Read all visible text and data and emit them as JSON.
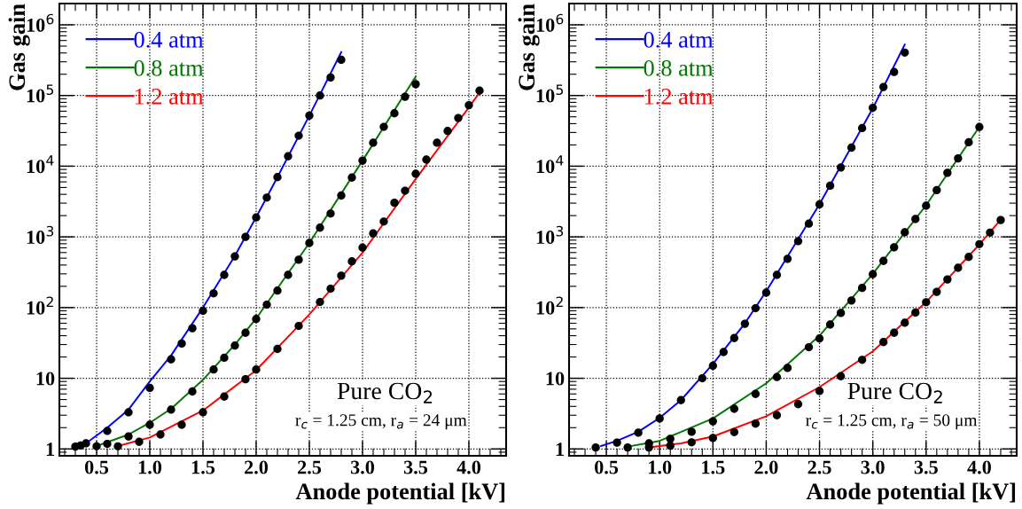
{
  "chart_data": [
    {
      "type": "line",
      "xlabel": "Anode potential [kV]",
      "ylabel": "Gas gain",
      "log": "y",
      "grid": true,
      "legend": "top left",
      "xlim": [
        0.15,
        4.35
      ],
      "xticks": [
        0.5,
        {
          "value": 1,
          "label": "1.0"
        },
        1.5,
        {
          "value": 2,
          "label": "2.0"
        },
        2.5,
        {
          "value": 3,
          "label": "3.0"
        },
        3.5,
        {
          "value": 4,
          "label": "4.0"
        }
      ],
      "ylim": [
        0.8,
        2000000
      ],
      "yticks": [
        1,
        10,
        {
          "value": 100,
          "label": "10$^{2}$"
        },
        {
          "value": 1000,
          "label": "10$^{3}$"
        },
        {
          "value": 10000,
          "label": "10$^{4}$"
        },
        {
          "value": 100000,
          "label": "10$^{5}$"
        },
        {
          "value": 1000000,
          "label": "10$^{6}$"
        }
      ],
      "annotations": [
        "Pure CO$_{2}$",
        "r$_{c}$ = 1.25 cm, r$_{a}$ = 24 μm"
      ],
      "series": [
        {
          "name": "0.4 atm",
          "color": "#0000ff",
          "x": [
            0.4,
            0.6,
            0.8,
            1.0,
            1.2,
            1.5,
            1.8,
            2.0,
            2.2,
            2.5,
            2.8
          ],
          "values": [
            1.2,
            2.0,
            3.6,
            9.0,
            21,
            100,
            540,
            1900,
            7000,
            52000,
            410000
          ]
        },
        {
          "name": "0.8 atm",
          "color": "#007700",
          "x": [
            0.5,
            0.8,
            1.0,
            1.2,
            1.5,
            1.8,
            2.0,
            2.5,
            3.0,
            3.5
          ],
          "values": [
            1.1,
            1.6,
            2.35,
            3.7,
            9.5,
            30,
            70,
            820,
            12000,
            186000
          ]
        },
        {
          "name": "1.2 atm",
          "color": "#ff0000",
          "x": [
            0.7,
            1.0,
            1.5,
            2.0,
            2.5,
            3.0,
            3.5,
            4.0,
            4.1
          ],
          "values": [
            1.1,
            1.45,
            3.5,
            13,
            80,
            600,
            6600,
            68000,
            110000
          ]
        },
        {
          "type": "scatter",
          "marker": "circle",
          "color": "#000000",
          "x": [
            0.3,
            0.35,
            0.4,
            0.6,
            0.8,
            1.0,
            1.2,
            1.3,
            1.4,
            1.5,
            1.6,
            1.7,
            1.8,
            1.9,
            2.0,
            2.1,
            2.2,
            2.3,
            2.4,
            2.5,
            2.6,
            2.7,
            2.8
          ],
          "values": [
            1.08,
            1.12,
            1.2,
            1.8,
            3.3,
            7.3,
            18.5,
            31,
            51,
            90,
            159,
            290,
            530,
            1000,
            1880,
            3600,
            7000,
            13800,
            27000,
            52000,
            100000,
            180000,
            320000
          ]
        },
        {
          "type": "scatter",
          "marker": "circle",
          "color": "#000000",
          "x": [
            0.5,
            0.6,
            0.8,
            1.0,
            1.2,
            1.4,
            1.6,
            1.7,
            1.8,
            1.9,
            2.0,
            2.1,
            2.2,
            2.3,
            2.4,
            2.5,
            2.6,
            2.7,
            2.8,
            2.9,
            3.0,
            3.1,
            3.2,
            3.3,
            3.4,
            3.5
          ],
          "values": [
            1.09,
            1.18,
            1.5,
            2.2,
            3.6,
            6.5,
            13.3,
            19.5,
            29,
            44,
            69,
            110,
            174,
            290,
            475,
            820,
            1350,
            2140,
            3850,
            6900,
            12000,
            21500,
            36000,
            56000,
            96000,
            145000
          ]
        },
        {
          "type": "scatter",
          "marker": "circle",
          "color": "#000000",
          "x": [
            0.7,
            0.9,
            1.1,
            1.3,
            1.5,
            1.7,
            1.9,
            2.0,
            2.2,
            2.4,
            2.6,
            2.7,
            2.8,
            2.9,
            3.0,
            3.1,
            3.2,
            3.3,
            3.4,
            3.5,
            3.6,
            3.7,
            3.8,
            3.9,
            4.0,
            4.1
          ],
          "values": [
            1.09,
            1.26,
            1.6,
            2.2,
            3.3,
            5.5,
            9.7,
            13.3,
            26,
            55,
            120,
            185,
            283,
            450,
            705,
            1120,
            1650,
            3040,
            4500,
            7800,
            12400,
            21500,
            31500,
            48000,
            73000,
            117000
          ]
        }
      ]
    },
    {
      "type": "line",
      "xlabel": "Anode potential [kV]",
      "ylabel": "Gas gain",
      "log": "y",
      "grid": true,
      "legend": "top left",
      "xlim": [
        0.15,
        4.35
      ],
      "xticks": [
        0.5,
        {
          "value": 1,
          "label": "1.0"
        },
        1.5,
        {
          "value": 2,
          "label": "2.0"
        },
        2.5,
        {
          "value": 3,
          "label": "3.0"
        },
        3.5,
        {
          "value": 4,
          "label": "4.0"
        }
      ],
      "ylim": [
        0.8,
        2000000
      ],
      "yticks": [
        1,
        10,
        {
          "value": 100,
          "label": "10$^{2}$"
        },
        {
          "value": 1000,
          "label": "10$^{3}$"
        },
        {
          "value": 10000,
          "label": "10$^{4}$"
        },
        {
          "value": 100000,
          "label": "10$^{5}$"
        },
        {
          "value": 1000000,
          "label": "10$^{6}$"
        }
      ],
      "annotations": [
        "Pure CO$_{2}$",
        "r$_{c}$ = 1.25 cm, r$_{a}$ = 50 μm"
      ],
      "series": [
        {
          "name": "0.4 atm",
          "color": "#0000ff",
          "x": [
            0.45,
            0.6,
            0.8,
            1.0,
            1.2,
            1.5,
            1.8,
            2.0,
            2.5,
            3.0,
            3.3
          ],
          "values": [
            1.1,
            1.3,
            1.75,
            2.75,
            4.9,
            16,
            60,
            170,
            2900,
            66000,
            525000
          ]
        },
        {
          "name": "0.8 atm",
          "color": "#007700",
          "x": [
            0.7,
            1.0,
            1.5,
            2.0,
            2.5,
            3.0,
            3.5,
            4.0
          ],
          "values": [
            1.08,
            1.3,
            2.7,
            8.5,
            40,
            300,
            2800,
            36000
          ]
        },
        {
          "name": "1.2 atm",
          "color": "#ff0000",
          "x": [
            0.9,
            1.2,
            1.5,
            2.0,
            2.5,
            3.0,
            3.5,
            4.0,
            4.2
          ],
          "values": [
            1.05,
            1.2,
            1.5,
            2.9,
            7.5,
            24,
            120,
            780,
            1750
          ]
        },
        {
          "type": "scatter",
          "marker": "circle",
          "color": "#000000",
          "x": [
            0.4,
            0.6,
            0.8,
            1.0,
            1.2,
            1.4,
            1.5,
            1.6,
            1.7,
            1.8,
            1.9,
            2.0,
            2.1,
            2.2,
            2.3,
            2.4,
            2.5,
            2.6,
            2.7,
            2.8,
            2.9,
            3.0,
            3.1,
            3.2,
            3.3
          ],
          "values": [
            1.05,
            1.23,
            1.7,
            2.7,
            4.9,
            10,
            15,
            23.5,
            37,
            59,
            98,
            163,
            290,
            490,
            870,
            1540,
            2880,
            5300,
            9600,
            18300,
            34600,
            67000,
            132000,
            215000,
            405000
          ]
        },
        {
          "type": "scatter",
          "marker": "circle",
          "color": "#000000",
          "x": [
            0.7,
            0.9,
            1.1,
            1.3,
            1.5,
            1.7,
            1.9,
            2.1,
            2.2,
            2.4,
            2.5,
            2.6,
            2.7,
            2.8,
            2.9,
            3.0,
            3.1,
            3.2,
            3.3,
            3.4,
            3.5,
            3.6,
            3.7,
            3.8,
            3.9,
            4.0
          ],
          "values": [
            1.05,
            1.2,
            1.39,
            1.75,
            2.46,
            3.7,
            6.0,
            10.4,
            14,
            27.5,
            36.5,
            57.5,
            84,
            126,
            190,
            296,
            457,
            713,
            1160,
            1790,
            2760,
            4590,
            8060,
            12900,
            21800,
            35800
          ]
        },
        {
          "type": "scatter",
          "marker": "circle",
          "color": "#000000",
          "x": [
            0.9,
            1.1,
            1.3,
            1.5,
            1.7,
            1.9,
            2.1,
            2.3,
            2.5,
            2.7,
            2.9,
            3.1,
            3.2,
            3.3,
            3.4,
            3.5,
            3.6,
            3.7,
            3.8,
            3.9,
            4.0,
            4.1,
            4.2
          ],
          "values": [
            1.05,
            1.11,
            1.24,
            1.43,
            1.73,
            2.28,
            3.0,
            4.3,
            6.6,
            10.7,
            18.2,
            32.5,
            44,
            61,
            85,
            119,
            167,
            250,
            365,
            520,
            790,
            1150,
            1730
          ]
        }
      ]
    }
  ]
}
